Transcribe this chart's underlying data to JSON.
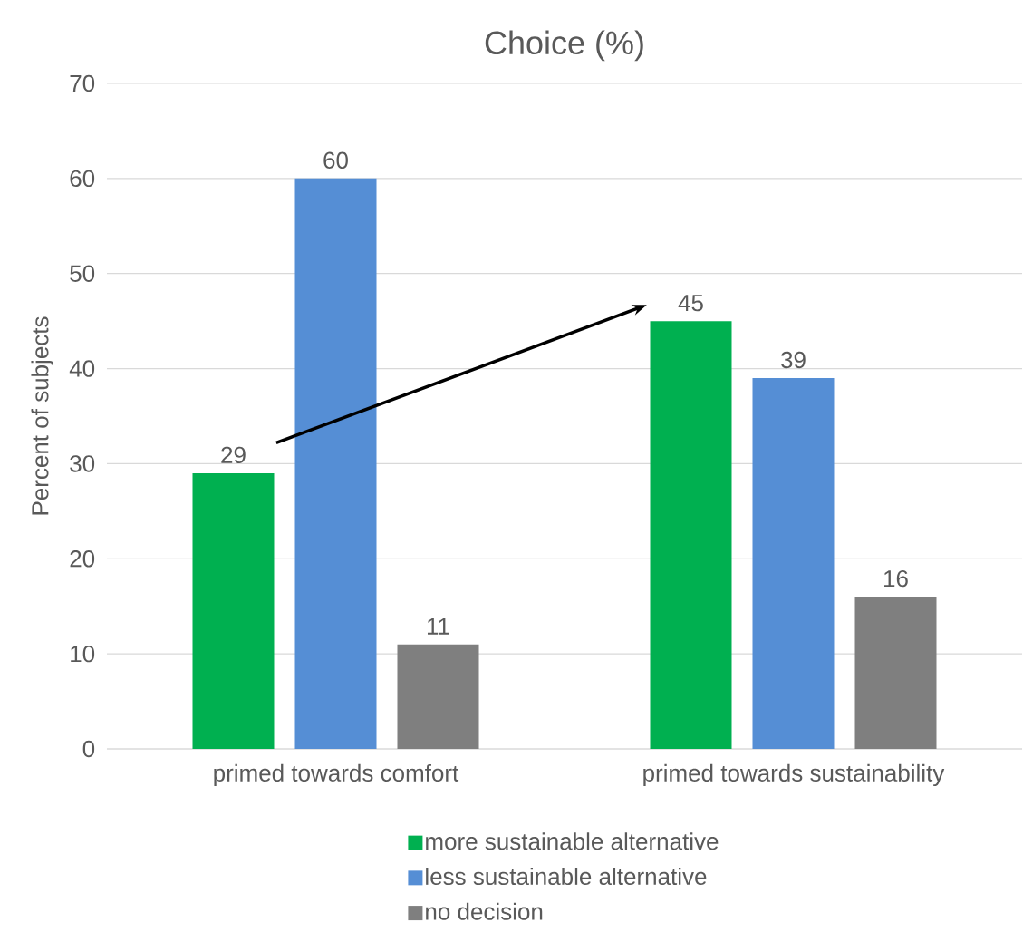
{
  "chart_data": {
    "type": "bar",
    "title": "Choice (%)",
    "ylabel": "Percent of subjects",
    "categories": [
      "primed towards comfort",
      "primed towards sustainability"
    ],
    "series": [
      {
        "name": "more sustainable alternative",
        "color": "#00b050",
        "values": [
          29,
          45
        ]
      },
      {
        "name": "less sustainable alternative",
        "color": "#558ed5",
        "values": [
          60,
          39
        ]
      },
      {
        "name": "no decision",
        "color": "#7f7f7f",
        "values": [
          11,
          16
        ]
      }
    ],
    "ylim": [
      0,
      70
    ],
    "yticks": [
      0,
      10,
      20,
      30,
      40,
      50,
      60,
      70
    ],
    "grid": "y",
    "legend": "bottom",
    "data_labels": true
  }
}
